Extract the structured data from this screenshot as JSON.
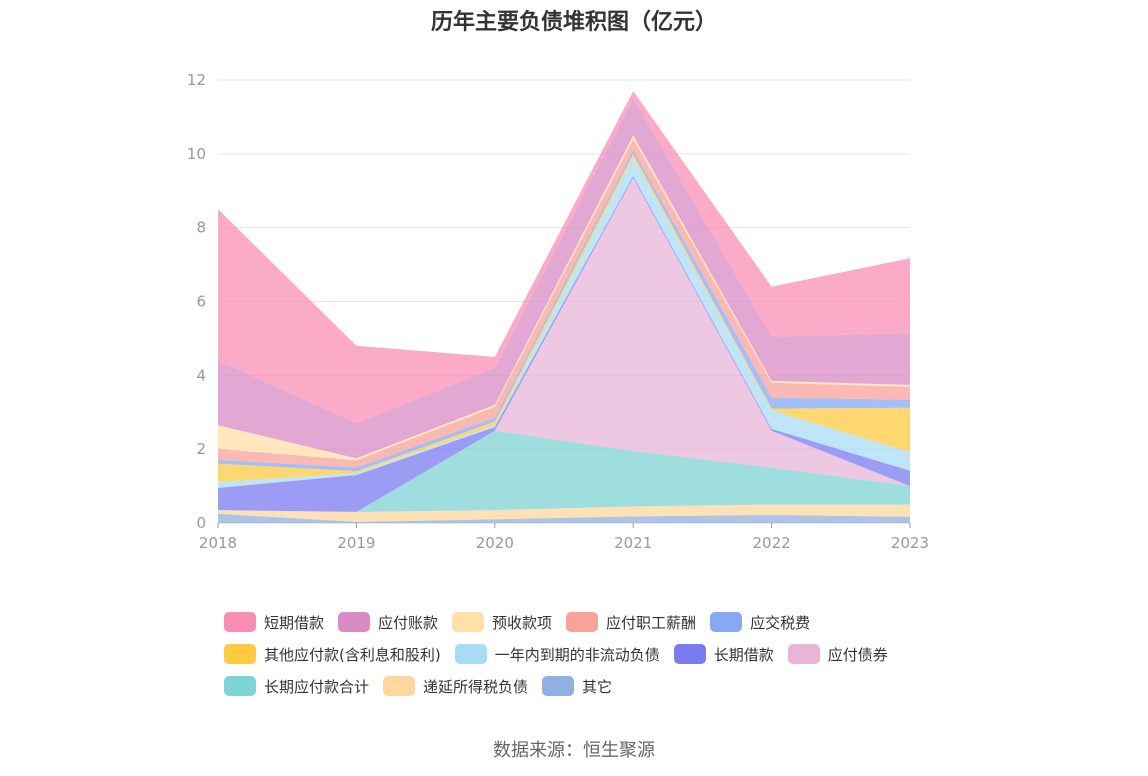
{
  "chart_data": {
    "type": "area",
    "stacked": true,
    "title": "历年主要负债堆积图（亿元）",
    "source": "数据来源：恒生聚源",
    "categories": [
      "2018",
      "2019",
      "2020",
      "2021",
      "2022",
      "2023"
    ],
    "ylim": [
      0,
      12
    ],
    "yticks": [
      "0",
      "2",
      "4",
      "6",
      "8",
      "10",
      "12"
    ],
    "grid": true,
    "legend_position": "bottom",
    "series": [
      {
        "name": "其它",
        "color": "#8fb0e0",
        "values": [
          0.25,
          0.03,
          0.1,
          0.18,
          0.22,
          0.17
        ]
      },
      {
        "name": "递延所得税负债",
        "color": "#ffd79e",
        "values": [
          0.1,
          0.27,
          0.25,
          0.27,
          0.28,
          0.33
        ]
      },
      {
        "name": "长期应付款合计",
        "color": "#7ed3d3",
        "values": [
          0,
          0,
          2.15,
          1.5,
          1.0,
          0.5
        ]
      },
      {
        "name": "应付债券",
        "color": "#e8b4d8",
        "values": [
          0,
          0,
          0,
          7.4,
          1.0,
          0
        ]
      },
      {
        "name": "长期借款",
        "color": "#7b7bf0",
        "values": [
          0.6,
          1.0,
          0.1,
          0.05,
          0.05,
          0.42
        ]
      },
      {
        "name": "一年内到期的非流动负债",
        "color": "#a8dcf5",
        "values": [
          0.16,
          0.05,
          0.05,
          0.5,
          0.5,
          0.5
        ]
      },
      {
        "name": "其他应付款(含利息和股利)",
        "color": "#ffc940",
        "values": [
          0.5,
          0.05,
          0.1,
          0.1,
          0.05,
          1.2
        ]
      },
      {
        "name": "应交税费",
        "color": "#86a8f5",
        "values": [
          0.1,
          0.1,
          0.1,
          0.1,
          0.3,
          0.22
        ]
      },
      {
        "name": "应付职工薪酬",
        "color": "#f8a39a",
        "values": [
          0.3,
          0.2,
          0.3,
          0.3,
          0.4,
          0.35
        ]
      },
      {
        "name": "预收款项",
        "color": "#ffe0a8",
        "values": [
          0.64,
          0.05,
          0.05,
          0.1,
          0.05,
          0.05
        ]
      },
      {
        "name": "应付账款",
        "color": "#d88bc4",
        "values": [
          1.75,
          0.95,
          1.0,
          1.0,
          1.2,
          1.4
        ]
      },
      {
        "name": "短期借款",
        "color": "#f98db4",
        "values": [
          4.1,
          2.1,
          0.3,
          0.2,
          1.35,
          2.03
        ]
      }
    ],
    "legend_rows": [
      [
        0,
        1,
        2,
        3,
        4
      ],
      [
        5,
        6,
        7,
        8
      ],
      [
        9,
        10,
        11
      ]
    ],
    "legend_order": [
      "短期借款",
      "应付账款",
      "预收款项",
      "应付职工薪酬",
      "应交税费",
      "其他应付款(含利息和股利)",
      "一年内到期的非流动负债",
      "长期借款",
      "应付债券",
      "长期应付款合计",
      "递延所得税负债",
      "其它"
    ]
  }
}
